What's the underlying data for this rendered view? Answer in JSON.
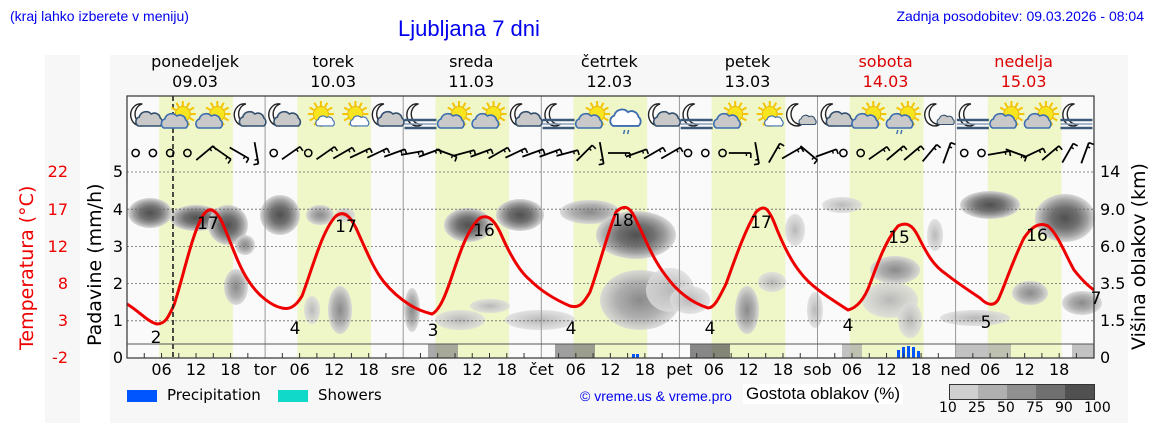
{
  "header": {
    "note": "(kraj lahko izberete v meniju)",
    "title": "Ljubljana 7 dni",
    "updated": "Zadnja posodobitev: 09.03.2026 - 08:04"
  },
  "days": [
    {
      "name": "ponedeljek",
      "date": "09.03",
      "weekend": false,
      "short": ""
    },
    {
      "name": "torek",
      "date": "10.03",
      "weekend": false,
      "short": "tor"
    },
    {
      "name": "sreda",
      "date": "11.03",
      "weekend": false,
      "short": "sre"
    },
    {
      "name": "četrtek",
      "date": "12.03",
      "weekend": false,
      "short": "čet"
    },
    {
      "name": "petek",
      "date": "13.03",
      "weekend": false,
      "short": "pet"
    },
    {
      "name": "sobota",
      "date": "14.03",
      "weekend": true,
      "short": "sob"
    },
    {
      "name": "nedelja",
      "date": "15.03",
      "weekend": true,
      "short": "ned"
    }
  ],
  "axes": {
    "temperature_title": "Temperatura (°C)",
    "precip_title": "Padavine (mm/h)",
    "cloud_title": "Višina oblakov (km)",
    "temperature_ticks": [
      "22",
      "17",
      "12",
      "8",
      "3",
      "-2"
    ],
    "precip_ticks": [
      "5",
      "4",
      "3",
      "2",
      "1",
      "0"
    ],
    "cloud_ticks": [
      "14",
      "9.0",
      "6.0",
      "3.5",
      "1.5",
      "0"
    ],
    "hour_ticks": [
      "06",
      "12",
      "18"
    ]
  },
  "legend": {
    "precipitation": "Precipitation",
    "showers": "Showers",
    "precipitation_color": "#0055ff",
    "showers_color": "#11d9c9",
    "credit": "© vreme.us & vreme.pro",
    "cloud_density_title": "Gostota oblakov (%)",
    "cloud_density_levels": [
      "10",
      "25",
      "50",
      "75",
      "90",
      "100"
    ],
    "cloud_density_colors": [
      "#d0d0d0",
      "#b0b0b0",
      "#909090",
      "#707070",
      "#505050"
    ]
  },
  "icons": [
    "moon-cloud",
    "sun-cloud",
    "sun-cloud",
    "moon-cloud",
    "moon-cloud",
    "sun-small-cloud",
    "sun-small-cloud",
    "moon-cloud",
    "moon-fog",
    "sun-cloud",
    "sun-cloud",
    "moon-cloud",
    "moon-fog",
    "sun-cloud",
    "cloud-drizzle",
    "moon-cloud",
    "moon-fog",
    "sun-cloud",
    "sun-small-cloud",
    "moon-small-cloud",
    "moon-cloud",
    "sun-cloud",
    "sun-cloud-drizzle",
    "moon-small-cloud",
    "moon-fog",
    "sun-cloud",
    "sun-cloud",
    "moon-fog"
  ],
  "chart_data": {
    "type": "line",
    "title": "Ljubljana 7 dni",
    "xlabel": "",
    "ylabel": "Temperatura (°C)",
    "x": [
      "09.03",
      "10.03",
      "11.03",
      "12.03",
      "13.03",
      "14.03",
      "15.03"
    ],
    "series": [
      {
        "name": "Temperatura min (°C)",
        "values": [
          2,
          4,
          3,
          4,
          4,
          4,
          5
        ]
      },
      {
        "name": "Temperatura max (°C)",
        "values": [
          17,
          17,
          16,
          18,
          17,
          15,
          16
        ]
      }
    ],
    "end_value_label": 7,
    "temperature_curve_hourly_approx": [
      {
        "t": "09.03 00",
        "v": 5.5
      },
      {
        "t": "09.03 06",
        "v": 2
      },
      {
        "t": "09.03 14",
        "v": 17
      },
      {
        "t": "09.03 21",
        "v": 6
      },
      {
        "t": "10.03 05",
        "v": 4
      },
      {
        "t": "10.03 14",
        "v": 17
      },
      {
        "t": "10.03 21",
        "v": 7
      },
      {
        "t": "11.03 05",
        "v": 3
      },
      {
        "t": "11.03 14",
        "v": 16
      },
      {
        "t": "11.03 21",
        "v": 7
      },
      {
        "t": "12.03 05",
        "v": 4
      },
      {
        "t": "12.03 14",
        "v": 18
      },
      {
        "t": "12.03 21",
        "v": 8
      },
      {
        "t": "13.03 05",
        "v": 4
      },
      {
        "t": "13.03 14",
        "v": 17
      },
      {
        "t": "13.03 21",
        "v": 7
      },
      {
        "t": "14.03 05",
        "v": 4
      },
      {
        "t": "14.03 14",
        "v": 15
      },
      {
        "t": "14.03 21",
        "v": 7
      },
      {
        "t": "15.03 05",
        "v": 5
      },
      {
        "t": "15.03 14",
        "v": 16
      },
      {
        "t": "15.03 24",
        "v": 7
      }
    ],
    "precipitation_mm_h": [
      {
        "t": "12.03 16",
        "v": 0.1
      },
      {
        "t": "14.03 13",
        "v": 0.2
      },
      {
        "t": "14.03 14",
        "v": 0.3
      },
      {
        "t": "14.03 15",
        "v": 0.3
      },
      {
        "t": "14.03 16",
        "v": 0.25
      },
      {
        "t": "14.03 17",
        "v": 0.15
      }
    ],
    "y_axes": {
      "temperature": {
        "ticks": [
          -2,
          3,
          8,
          12,
          17,
          22
        ]
      },
      "precipitation": {
        "range": [
          0,
          5
        ],
        "ticks": [
          0,
          1,
          2,
          3,
          4,
          5
        ]
      },
      "cloud_height_km": {
        "ticks": [
          0,
          1.5,
          3.5,
          6.0,
          9.0,
          14
        ]
      }
    },
    "current_time_marker": "09.03 08:04",
    "grid": "horizontal dotted",
    "daylight_shading": "06-18 yellow-green"
  }
}
